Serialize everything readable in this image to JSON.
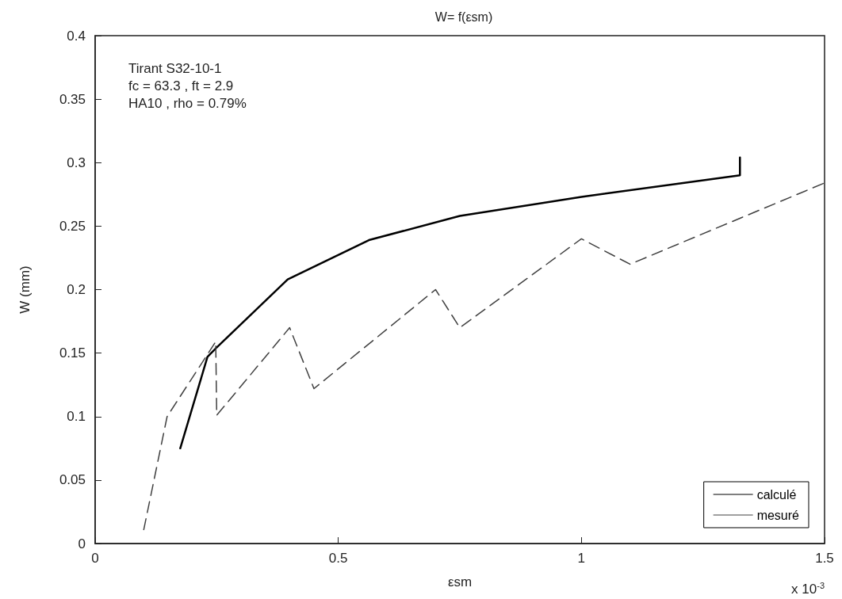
{
  "chart_data": {
    "type": "line",
    "title": "W= f(εsm)",
    "xlabel": "εsm",
    "ylabel": "W (mm)",
    "annotations": [
      "Tirant S32-10-1",
      "fc = 63.3 , ft = 2.9",
      "HA10 , rho = 0.79%",
      "x 10$^{-3}$"
    ],
    "series": [
      {
        "name": "calculé",
        "color": "#000000",
        "line_style": "solid",
        "x": [
          0.175,
          0.231,
          0.249,
          0.396,
          0.563,
          0.75,
          1.0,
          1.326,
          1.326
        ],
        "values": [
          0.075,
          0.147,
          0.154,
          0.208,
          0.239,
          0.258,
          0.273,
          0.29,
          0.304
        ]
      },
      {
        "name": "mesuré",
        "color": "#404040",
        "line_style": "dashed",
        "x": [
          0.1,
          0.148,
          0.248,
          0.25,
          0.4,
          0.45,
          0.7,
          0.75,
          1.0,
          1.1,
          1.5
        ],
        "values": [
          0.011,
          0.1,
          0.159,
          0.101,
          0.17,
          0.122,
          0.2,
          0.17,
          0.24,
          0.22,
          0.284
        ]
      }
    ],
    "xlim": [
      0,
      1.5
    ],
    "xticks": [
      0,
      0.5,
      1,
      1.5
    ],
    "ylim": [
      0,
      0.4
    ],
    "yticks": [
      0,
      0.05,
      0.1,
      0.15,
      0.2,
      0.25,
      0.3,
      0.35,
      0.4
    ],
    "grid": false,
    "legend": "bottom right",
    "marker": "none"
  }
}
